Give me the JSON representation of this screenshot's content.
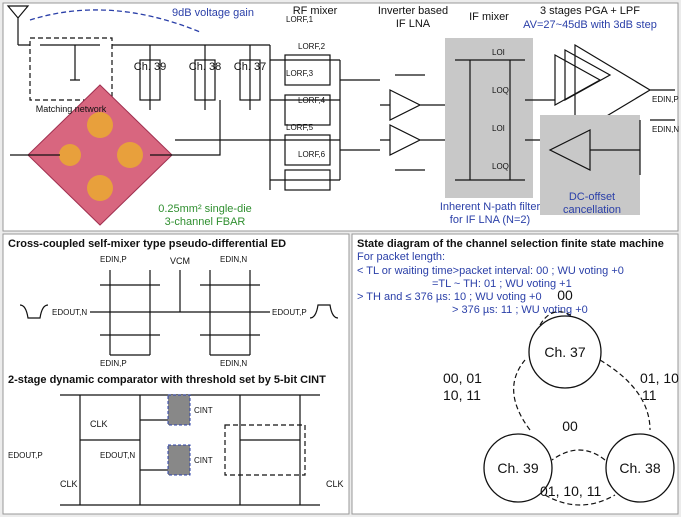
{
  "top_panel": {
    "gain_label": "9dB voltage gain",
    "matching_network": "Matching network",
    "channels": [
      "Ch. 39",
      "Ch. 38",
      "Ch. 37"
    ],
    "fbar": [
      "0.25mm² single-die",
      "3-channel FBAR"
    ],
    "rf_mixer": "RF mixer",
    "if_lna": [
      "Inverter based",
      "IF LNA"
    ],
    "if_mixer": "IF mixer",
    "pga": "3 stages PGA + LPF",
    "pga_gain": "AV=27~45dB with 3dB step",
    "npath": [
      "Inherent N-path filter",
      "for IF LNA (N=2)"
    ],
    "dc_offset": [
      "DC-offset",
      "cancellation"
    ],
    "lo_rf": [
      "LORF,1",
      "LORF,2",
      "LORF,3",
      "LORF,4",
      "LORF,5",
      "LORF,6"
    ],
    "lo_if": [
      "LOI",
      "LOQ",
      "LOI",
      "LOQ"
    ],
    "outputs": [
      "EDIN,P",
      "EDIN,N"
    ]
  },
  "ed_panel": {
    "title": "Cross-coupled self-mixer type pseudo-differential ED",
    "vcm": "VCM",
    "inputs": [
      "EDIN,P",
      "EDIN,N",
      "EDIN,P",
      "EDIN,N"
    ],
    "outputs": [
      "EDOUT,N",
      "EDOUT,P"
    ]
  },
  "comparator_panel": {
    "title": "2-stage dynamic comparator with threshold set by 5-bit CINT",
    "clk": [
      "CLK",
      "CLK",
      "CLK"
    ],
    "cint": [
      "CINT",
      "CINT"
    ],
    "inputs": [
      "EDOUT,P",
      "EDOUT,N"
    ]
  },
  "state_panel": {
    "title": "State diagram of the channel selection finite state machine",
    "intro": "For packet length:",
    "rules": [
      "< TL or waiting time>packet interval: 00 ; WU voting +0",
      "=TL ~ TH: 01 ; WU voting +1",
      "> TH and ≤ 376 µs: 10 ; WU voting +0",
      "> 376 µs: 11 ; WU voting +0"
    ],
    "states": [
      "Ch. 37",
      "Ch. 38",
      "Ch. 39"
    ],
    "transitions": [
      "00",
      "01, 10",
      "11",
      "00, 01",
      "10, 11",
      "00",
      "01, 10, 11"
    ]
  }
}
